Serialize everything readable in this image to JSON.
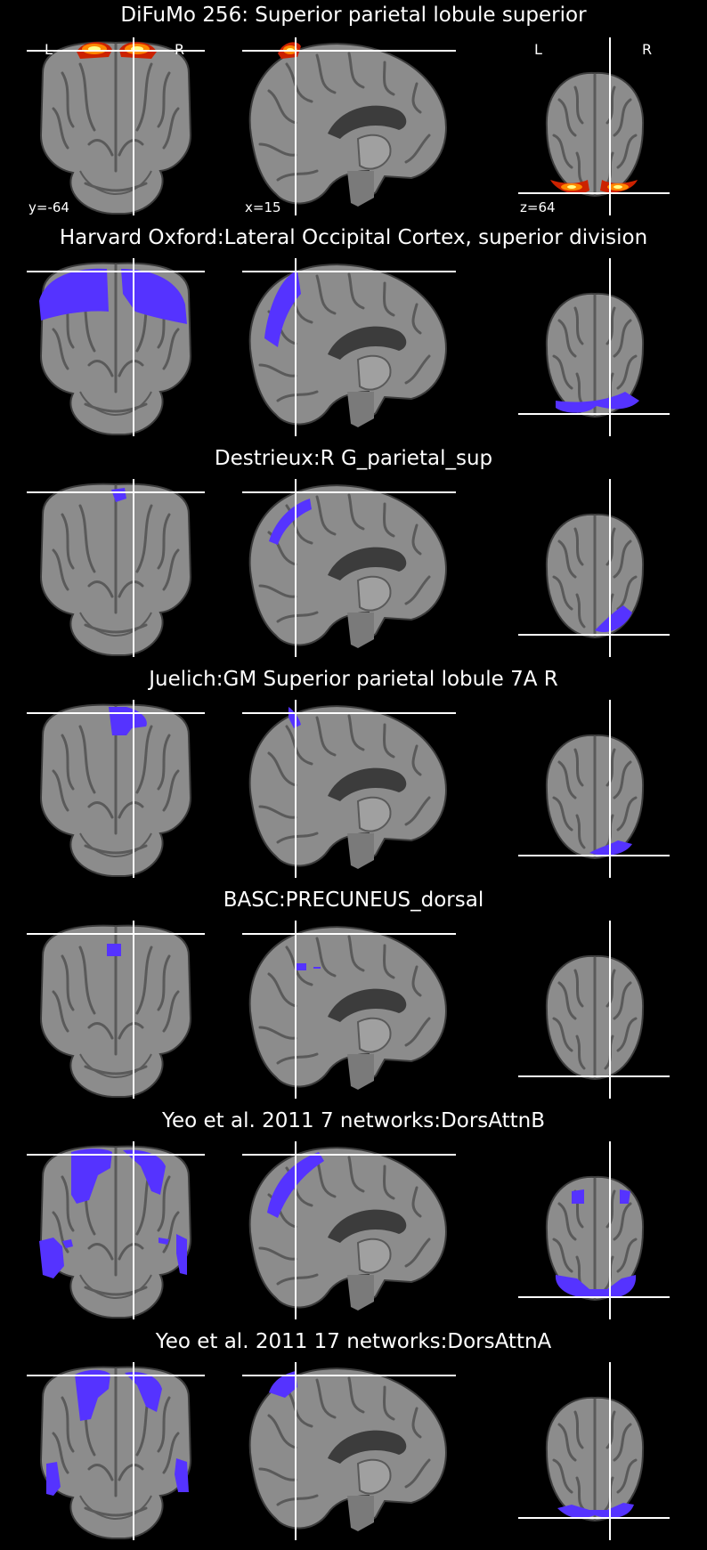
{
  "panels": [
    {
      "title": "DiFuMo 256: Superior parietal lobule superior",
      "map": "hot",
      "labels": {
        "left": "L",
        "right": "R",
        "coronal": "y=-64",
        "sagittal": "x=15",
        "axial": "z=64"
      }
    },
    {
      "title": "Harvard Oxford:Lateral Occipital Cortex, superior division",
      "map": "blue"
    },
    {
      "title": "Destrieux:R G_parietal_sup",
      "map": "blue"
    },
    {
      "title": "Juelich:GM Superior parietal lobule 7A R",
      "map": "blue"
    },
    {
      "title": "BASC:PRECUNEUS_dorsal",
      "map": "blue"
    },
    {
      "title": "Yeo et al. 2011 7 networks:DorsAttnB",
      "map": "blue"
    },
    {
      "title": "Yeo et al. 2011 17 networks:DorsAttnA",
      "map": "blue"
    }
  ],
  "colors": {
    "background": "#000000",
    "overlay_blue": "#5533ff",
    "hot_outer": "#cc2200",
    "hot_mid": "#ff8800",
    "hot_core": "#ffff88",
    "crosshair": "#ffffff"
  }
}
